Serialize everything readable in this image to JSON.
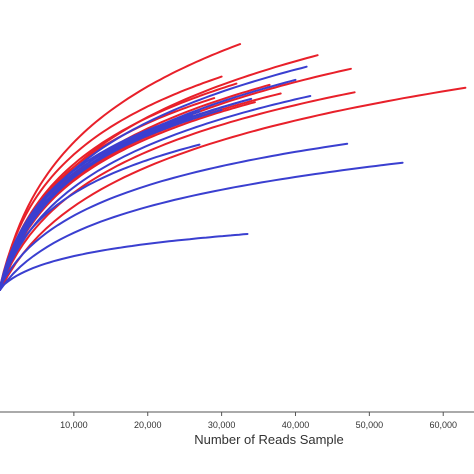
{
  "chart_data": {
    "type": "line",
    "title": "",
    "xlabel": "Number of Reads Sample",
    "ylabel": "",
    "xlim": [
      0,
      62000
    ],
    "ylim": [
      0,
      100
    ],
    "x_ticks": [
      10000,
      20000,
      30000,
      40000,
      50000,
      60000
    ],
    "x_tick_labels": [
      "10,000",
      "20,000",
      "30,000",
      "40,000",
      "50,000",
      "60,000"
    ],
    "grid": false,
    "legend": "none",
    "colors": {
      "red": "#e8202a",
      "blue": "#3a3fd0"
    },
    "series": [
      {
        "color": "red",
        "end_x": 32500,
        "end_y": 89.3
      },
      {
        "color": "red",
        "end_x": 43000,
        "end_y": 86.6
      },
      {
        "color": "red",
        "end_x": 47500,
        "end_y": 83.3
      },
      {
        "color": "red",
        "end_x": 63000,
        "end_y": 78.7
      },
      {
        "color": "red",
        "end_x": 48000,
        "end_y": 77.6
      },
      {
        "color": "red",
        "end_x": 38000,
        "end_y": 77.3
      },
      {
        "color": "red",
        "end_x": 36500,
        "end_y": 79.4
      },
      {
        "color": "red",
        "end_x": 32000,
        "end_y": 79.7
      },
      {
        "color": "red",
        "end_x": 30000,
        "end_y": 81.4
      },
      {
        "color": "red",
        "end_x": 34500,
        "end_y": 75.2
      },
      {
        "color": "red",
        "end_x": 29000,
        "end_y": 76.2
      },
      {
        "color": "blue",
        "end_x": 41500,
        "end_y": 83.8
      },
      {
        "color": "blue",
        "end_x": 40000,
        "end_y": 80.6
      },
      {
        "color": "blue",
        "end_x": 42000,
        "end_y": 76.7
      },
      {
        "color": "blue",
        "end_x": 34000,
        "end_y": 76.0
      },
      {
        "color": "blue",
        "end_x": 33000,
        "end_y": 75.5
      },
      {
        "color": "blue",
        "end_x": 30000,
        "end_y": 73.3
      },
      {
        "color": "blue",
        "end_x": 27000,
        "end_y": 72.9
      },
      {
        "color": "blue",
        "end_x": 26000,
        "end_y": 72.0
      },
      {
        "color": "blue",
        "end_x": 27000,
        "end_y": 64.9
      },
      {
        "color": "blue",
        "end_x": 47000,
        "end_y": 65.1
      },
      {
        "color": "blue",
        "end_x": 54500,
        "end_y": 60.5
      },
      {
        "color": "blue",
        "end_x": 33500,
        "end_y": 43.2
      }
    ]
  }
}
